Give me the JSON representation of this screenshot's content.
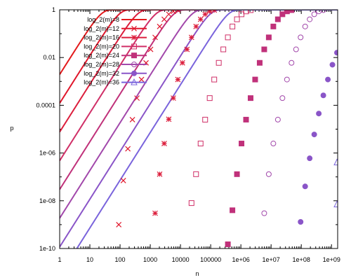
{
  "chart_data": {
    "type": "line",
    "title": "",
    "xlabel": "n",
    "ylabel": "p",
    "xscale": "log",
    "yscale": "log",
    "xlim": [
      1,
      1600000000
    ],
    "ylim": [
      1e-10,
      1
    ],
    "grid": false,
    "legend_position": "top-left",
    "x_ticks": [
      {
        "value": 1,
        "label": "1"
      },
      {
        "value": 10,
        "label": "10"
      },
      {
        "value": 100,
        "label": "100"
      },
      {
        "value": 1000,
        "label": "1000"
      },
      {
        "value": 10000,
        "label": "10000"
      },
      {
        "value": 100000,
        "label": "100000"
      },
      {
        "value": 1000000,
        "label": "1e+06"
      },
      {
        "value": 10000000,
        "label": "1e+07"
      },
      {
        "value": 100000000,
        "label": "1e+08"
      },
      {
        "value": 1000000000,
        "label": "1e+09"
      }
    ],
    "y_ticks": [
      {
        "value": 1,
        "label": "1"
      },
      {
        "value": 0.01,
        "label": "0.01"
      },
      {
        "value": 0.0001,
        "label": "0.0001"
      },
      {
        "value": 1e-06,
        "label": "1e-06"
      },
      {
        "value": 1e-08,
        "label": "1e-08"
      },
      {
        "value": 1e-10,
        "label": "1e-10"
      }
    ],
    "series": [
      {
        "name": "log_2(m)=8",
        "log2m": 8,
        "color": "#e31a1c",
        "marker": "none",
        "points": []
      },
      {
        "name": "log_2(m)=12",
        "log2m": 12,
        "color": "#e0162b",
        "marker": "x",
        "points": [
          [
            90.5,
            1e-09
          ],
          [
            128,
            7e-08
          ],
          [
            181,
            1.5e-06
          ],
          [
            256,
            2.5e-05
          ],
          [
            362,
            0.0002
          ],
          [
            512,
            0.0012
          ],
          [
            724,
            0.006
          ],
          [
            1024,
            0.022
          ],
          [
            1448,
            0.07
          ],
          [
            2048,
            0.2
          ],
          [
            2896,
            0.4
          ],
          [
            4096,
            0.65
          ],
          [
            5793,
            0.86
          ],
          [
            8192,
            0.97
          ]
        ]
      },
      {
        "name": "log_2(m)=16",
        "log2m": 16,
        "color": "#dc1e3c",
        "marker": "star",
        "points": [
          [
            1448,
            3e-09
          ],
          [
            2048,
            1.3e-07
          ],
          [
            2896,
            2.5e-06
          ],
          [
            4096,
            2.6e-05
          ],
          [
            5793,
            0.0002
          ],
          [
            8192,
            0.0012
          ],
          [
            11585,
            0.006
          ],
          [
            16384,
            0.022
          ],
          [
            23170,
            0.07
          ],
          [
            32768,
            0.2
          ],
          [
            46341,
            0.4
          ],
          [
            65536,
            0.65
          ],
          [
            92682,
            0.87
          ],
          [
            131072,
            0.97
          ]
        ]
      },
      {
        "name": "log_2(m)=20",
        "log2m": 20,
        "color": "#d02f67",
        "marker": "open-square",
        "points": [
          [
            23170,
            8e-09
          ],
          [
            32768,
            1.3e-07
          ],
          [
            46341,
            2.5e-06
          ],
          [
            65536,
            2.5e-05
          ],
          [
            92682,
            0.0002
          ],
          [
            131072,
            0.0012
          ],
          [
            185364,
            0.006
          ],
          [
            262144,
            0.022
          ],
          [
            370728,
            0.07
          ],
          [
            524288,
            0.2
          ],
          [
            741455,
            0.4
          ],
          [
            1048576,
            0.65
          ],
          [
            1482910,
            0.86
          ],
          [
            2097152,
            0.97
          ]
        ]
      },
      {
        "name": "log_2(m)=24",
        "log2m": 24,
        "color": "#c0317a",
        "marker": "filled-square",
        "points": [
          [
            370728,
            1.5e-10
          ],
          [
            524288,
            4e-09
          ],
          [
            741455,
            1.3e-07
          ],
          [
            1048576,
            2.5e-06
          ],
          [
            1482910,
            2.5e-05
          ],
          [
            2097152,
            0.0002
          ],
          [
            2965821,
            0.0012
          ],
          [
            4194304,
            0.006
          ],
          [
            5931642,
            0.022
          ],
          [
            8388608,
            0.07
          ],
          [
            11863283,
            0.2
          ],
          [
            16777216,
            0.4
          ],
          [
            23726566,
            0.65
          ],
          [
            33554432,
            0.86
          ],
          [
            47453133,
            0.97
          ]
        ]
      },
      {
        "name": "log_2(m)=28",
        "log2m": 28,
        "color": "#a248ab",
        "marker": "open-circle",
        "points": [
          [
            5931642,
            3e-09
          ],
          [
            8388608,
            1.3e-07
          ],
          [
            11863283,
            2.5e-06
          ],
          [
            16777216,
            2.5e-05
          ],
          [
            23726566,
            0.0002
          ],
          [
            33554432,
            0.0012
          ],
          [
            47453133,
            0.006
          ],
          [
            67108864,
            0.022
          ],
          [
            94906265,
            0.07
          ],
          [
            134217728,
            0.2
          ],
          [
            189812531,
            0.4
          ],
          [
            268435456,
            0.65
          ],
          [
            379625062,
            0.86
          ],
          [
            536870912,
            0.97
          ]
        ]
      },
      {
        "name": "log_2(m)=32",
        "log2m": 32,
        "color": "#8a55c8",
        "marker": "filled-circle",
        "points": [
          [
            94906265,
            1.3e-09
          ],
          [
            134217728,
            4e-08
          ],
          [
            189812531,
            6e-07
          ],
          [
            268435456,
            6e-06
          ],
          [
            379625062,
            4.5e-05
          ],
          [
            536870912,
            0.00026
          ],
          [
            759250125,
            0.0012
          ],
          [
            1073741824,
            0.005
          ],
          [
            1518500250,
            0.016
          ]
        ]
      },
      {
        "name": "log_2(m)=36",
        "log2m": 36,
        "color": "#7a64dc",
        "marker": "open-triangle",
        "points": [
          [
            1518500250,
            7e-09
          ],
          [
            1518500250,
            4e-07
          ]
        ]
      }
    ]
  }
}
